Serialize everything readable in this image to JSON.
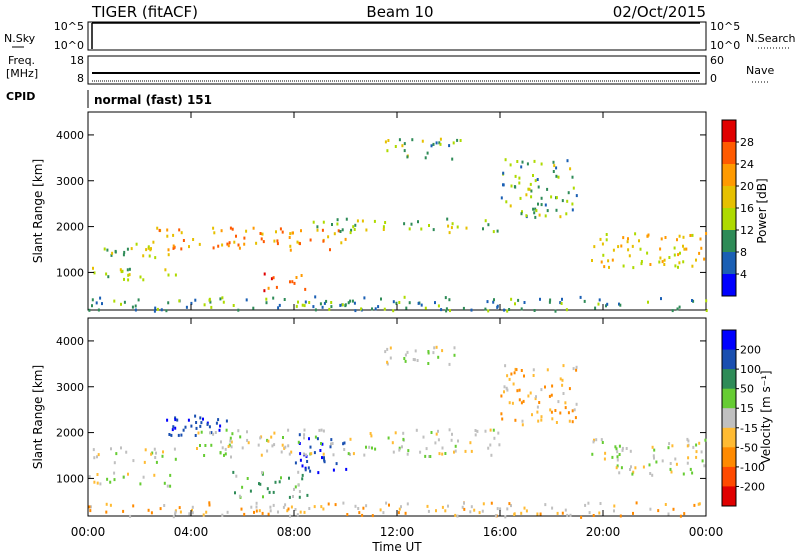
{
  "header": {
    "station": "TIGER (fitACF)",
    "beam": "Beam 10",
    "date": "02/Oct/2015"
  },
  "top_panels": {
    "noise": {
      "left_label": "N.Sky",
      "right_label": "N.Search",
      "left_ticks": [
        "10^5",
        "10^0"
      ],
      "right_ticks": [
        "10^5",
        "10^0"
      ]
    },
    "freq": {
      "left_label_1": "Freq.",
      "left_label_2": "[MHz]",
      "right_label": "Nave",
      "left_ticks": [
        "18",
        "8"
      ],
      "right_ticks": [
        "60",
        "0"
      ]
    },
    "cpid": {
      "label": "CPID",
      "text": "normal (fast) 151"
    }
  },
  "x_axis": {
    "label": "Time UT",
    "ticks": [
      "00:00",
      "04:00",
      "08:00",
      "12:00",
      "16:00",
      "20:00",
      "00:00"
    ]
  },
  "power_colorbar": {
    "label": "Power [dB]",
    "ticks": [
      "28",
      "24",
      "20",
      "16",
      "12",
      "8",
      "4"
    ],
    "colors": [
      "#e00000",
      "#ff5a00",
      "#ff9a00",
      "#e6c000",
      "#aeda00",
      "#2e8b57",
      "#1a5fb4",
      "#0000ff"
    ]
  },
  "velocity_colorbar": {
    "label": "Velocity [m s⁻¹]",
    "ticks": [
      "200",
      "100",
      "50",
      "15",
      "-15",
      "-50",
      "-100",
      "-200"
    ],
    "colors": [
      "#0000ff",
      "#1a4fb0",
      "#2e8b57",
      "#66cc33",
      "#c0c0c0",
      "#ffbb33",
      "#ff8a00",
      "#ff4a00",
      "#e00000"
    ]
  },
  "chart_data": {
    "type": "heatmap",
    "title": "TIGER (fitACF)",
    "xlabel": "Time UT",
    "ylabel": "Slant Range [km]",
    "xlim": [
      "00:00",
      "24:00"
    ],
    "ylim": [
      180,
      4500
    ],
    "grid": false,
    "yticks": [
      1000,
      2000,
      3000,
      4000
    ],
    "panels": [
      {
        "name": "Power",
        "colorbar": "Power [dB]",
        "echo_regions": [
          {
            "t_start": 0.0,
            "t_end": 3.2,
            "r_start": 1350,
            "r_end": 1700,
            "value": 12
          },
          {
            "t_start": 0.0,
            "t_end": 3.5,
            "r_start": 850,
            "r_end": 1150,
            "value": 12
          },
          {
            "t_start": 2.5,
            "t_end": 10.0,
            "r_start": 1500,
            "r_end": 2000,
            "value": 20
          },
          {
            "t_start": 6.8,
            "t_end": 8.5,
            "r_start": 600,
            "r_end": 1000,
            "value": 26
          },
          {
            "t_start": 8.5,
            "t_end": 16.0,
            "r_start": 1900,
            "r_end": 2200,
            "value": 12
          },
          {
            "t_start": 16.0,
            "t_end": 19.0,
            "r_start": 2200,
            "r_end": 3500,
            "value": 10
          },
          {
            "t_start": 11.5,
            "t_end": 14.5,
            "r_start": 3500,
            "r_end": 3950,
            "value": 10
          },
          {
            "t_start": 19.5,
            "t_end": 24.0,
            "r_start": 1100,
            "r_end": 1900,
            "value": 16
          },
          {
            "t_start": 0.0,
            "t_end": 24.0,
            "r_start": 180,
            "r_end": 500,
            "value": 8
          }
        ]
      },
      {
        "name": "Velocity",
        "colorbar": "Velocity [m s⁻¹]",
        "echo_regions": [
          {
            "t_start": 0.0,
            "t_end": 3.5,
            "r_start": 1350,
            "r_end": 1700,
            "value": 0
          },
          {
            "t_start": 0.0,
            "t_end": 3.5,
            "r_start": 850,
            "r_end": 1150,
            "value": 0
          },
          {
            "t_start": 3.0,
            "t_end": 5.5,
            "r_start": 1800,
            "r_end": 2500,
            "value": 150
          },
          {
            "t_start": 5.5,
            "t_end": 8.5,
            "r_start": 600,
            "r_end": 1200,
            "value": 30
          },
          {
            "t_start": 8.0,
            "t_end": 10.0,
            "r_start": 1150,
            "r_end": 2000,
            "value": 150
          },
          {
            "t_start": 4.0,
            "t_end": 16.0,
            "r_start": 1500,
            "r_end": 2100,
            "value": 0
          },
          {
            "t_start": 16.0,
            "t_end": 19.0,
            "r_start": 2200,
            "r_end": 3500,
            "value": -30
          },
          {
            "t_start": 11.5,
            "t_end": 14.5,
            "r_start": 3500,
            "r_end": 3950,
            "value": 0
          },
          {
            "t_start": 19.5,
            "t_end": 24.0,
            "r_start": 1100,
            "r_end": 1900,
            "value": 0
          },
          {
            "t_start": 0.0,
            "t_end": 24.0,
            "r_start": 180,
            "r_end": 500,
            "value": -20
          }
        ]
      }
    ]
  }
}
